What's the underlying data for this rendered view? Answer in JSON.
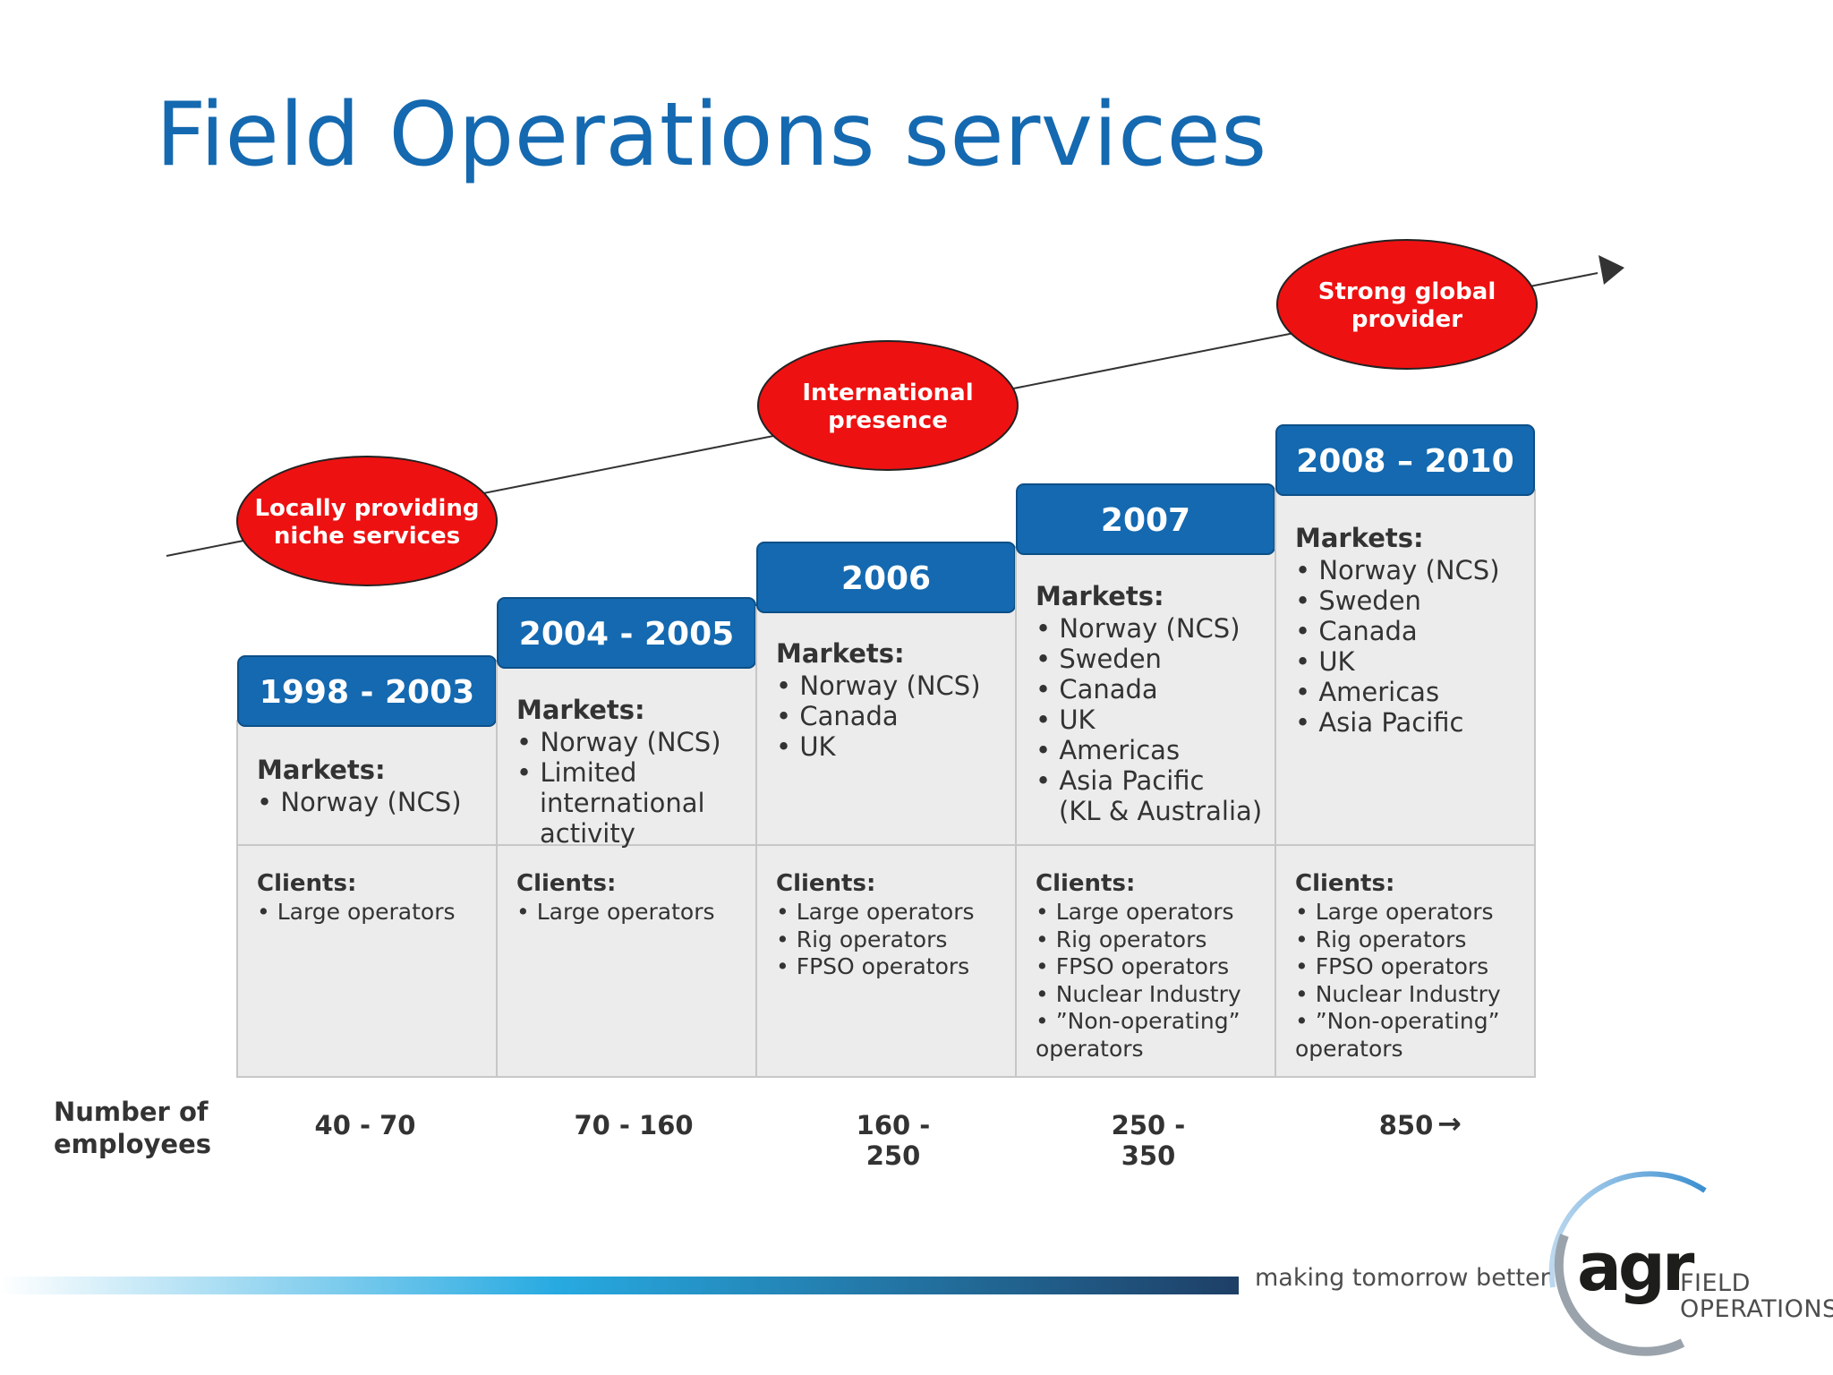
{
  "title": "Field Operations services",
  "tagline": "making tomorrow better",
  "logo": {
    "mark": "agr",
    "word_line1": "FIELD",
    "word_line2": "OPERATIONS",
    "colors": {
      "arc_blue": "#3a8fd0",
      "arc_grey": "#9aa3ab"
    }
  },
  "colors": {
    "title": "#1469b0",
    "header_box": "#1469b0",
    "panel": "#ececec",
    "panel_border": "#c7c7c7",
    "ellipse": "#ee1111",
    "arrow_line": "#333333"
  },
  "milestones": [
    {
      "label_line1": "Locally providing",
      "label_line2": "niche services"
    },
    {
      "label_line1": "International",
      "label_line2": "presence"
    },
    {
      "label_line1": "Strong global",
      "label_line2": "provider"
    }
  ],
  "stages": [
    {
      "period": "1998 - 2003",
      "markets_label": "Markets:",
      "markets": [
        "• Norway (NCS)"
      ],
      "clients_label": "Clients:",
      "clients": [
        "• Large operators"
      ],
      "employees": "40 - 70"
    },
    {
      "period": "2004 - 2005",
      "markets_label": "Markets:",
      "markets": [
        "• Norway (NCS)",
        "• Limited",
        "international",
        "activity"
      ],
      "clients_label": "Clients:",
      "clients": [
        "• Large operators"
      ],
      "employees": "70 - 160"
    },
    {
      "period": "2006",
      "markets_label": "Markets:",
      "markets": [
        "• Norway (NCS)",
        "• Canada",
        "• UK"
      ],
      "clients_label": "Clients:",
      "clients": [
        "• Large operators",
        "• Rig operators",
        "• FPSO operators"
      ],
      "employees": "160 - 250"
    },
    {
      "period": "2007",
      "markets_label": "Markets:",
      "markets": [
        "• Norway (NCS)",
        "• Sweden",
        "• Canada",
        "• UK",
        "• Americas",
        "• Asia Pacific",
        "(KL & Australia)"
      ],
      "clients_label": "Clients:",
      "clients": [
        "• Large operators",
        "• Rig operators",
        "• FPSO operators",
        "• Nuclear Industry",
        "• ”Non-operating”",
        "operators"
      ],
      "employees": "250 - 350"
    },
    {
      "period": "2008 – 2010",
      "markets_label": "Markets:",
      "markets": [
        "• Norway (NCS)",
        "• Sweden",
        "• Canada",
        "• UK",
        "• Americas",
        "• Asia Pacific"
      ],
      "clients_label": "Clients:",
      "clients": [
        "• Large operators",
        "• Rig operators",
        "• FPSO operators",
        "• Nuclear Industry",
        "• ”Non-operating”",
        "operators"
      ],
      "employees": "850"
    }
  ],
  "employees_label_line1": "Number of",
  "employees_label_line2": "employees",
  "employees_last_icon": "arrow-right-icon"
}
